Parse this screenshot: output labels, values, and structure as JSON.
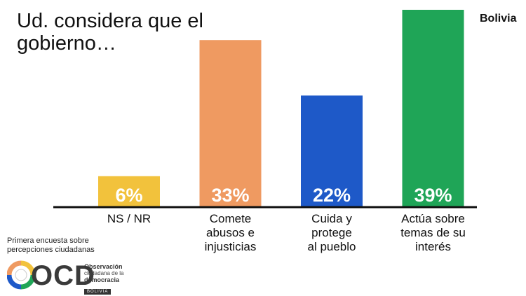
{
  "header": {
    "title_line1": "Ud. considera que el",
    "title_line2": "gobierno…",
    "country": "Bolivia"
  },
  "chart_data": {
    "type": "bar",
    "title": "Ud. considera que el gobierno…",
    "categories": [
      [
        "NS / NR"
      ],
      [
        "Comete",
        "abusos e",
        "injusticias"
      ],
      [
        "Cuida y",
        "protege",
        "al pueblo"
      ],
      [
        "Actúa sobre",
        "temas de su",
        "interés"
      ]
    ],
    "values": [
      6,
      33,
      22,
      39
    ],
    "value_labels": [
      "6%",
      "33%",
      "22%",
      "39%"
    ],
    "colors": [
      "#f2c23c",
      "#ef9a61",
      "#1e59c8",
      "#1fa557"
    ],
    "ylim": [
      0,
      39
    ],
    "grid": false,
    "legend": "none"
  },
  "footer": {
    "caption_line1": "Primera encuesta sobre",
    "caption_line2": "percepciones ciudadanas",
    "logo_letters": "OCD",
    "logo_name": "Observación",
    "logo_sub": "ciudadana de la",
    "logo_sub2": "democracia",
    "logo_country": "BOLIVIA"
  }
}
